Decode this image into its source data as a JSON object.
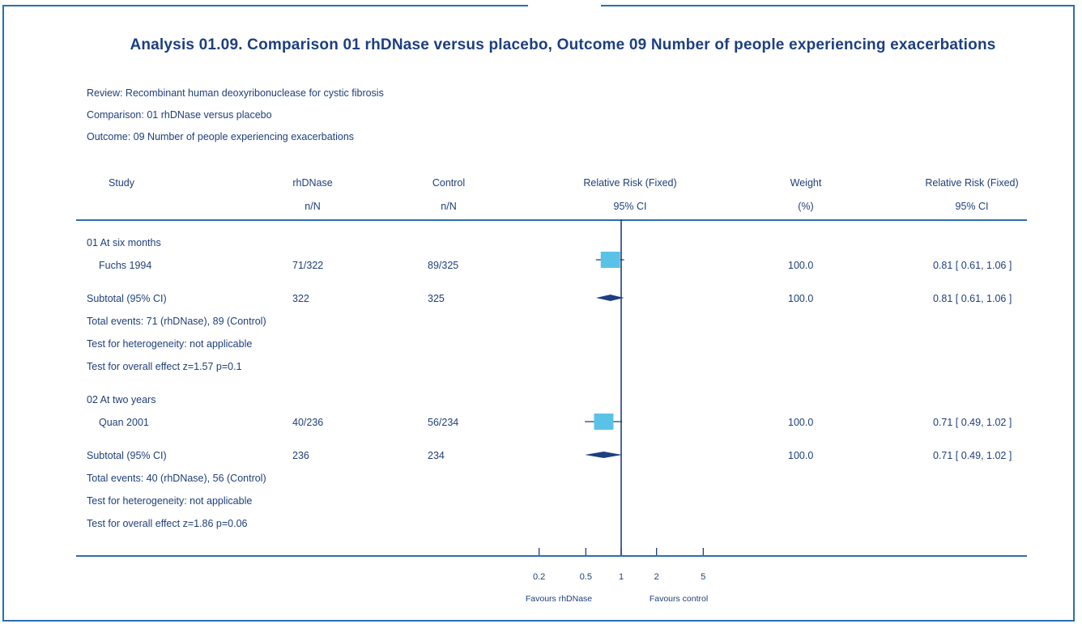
{
  "chart_data": {
    "type": "forest",
    "title": "Analysis 01.09.    Comparison 01 rhDNase versus placebo, Outcome 09 Number of people experiencing exacerbations",
    "review": "Review:   Recombinant human deoxyribonuclease for cystic fibrosis",
    "comparison": "Comparison:   01 rhDNase versus placebo",
    "outcome": "Outcome:   09 Number of people experiencing exacerbations",
    "headers": {
      "study": "Study",
      "rh1": "rhDNase",
      "rh2": "n/N",
      "ctl1": "Control",
      "ctl2": "n/N",
      "rrplot1": "Relative Risk (Fixed)",
      "rrplot2": "95% CI",
      "w1": "Weight",
      "w2": "(%)",
      "rr1": "Relative Risk (Fixed)",
      "rr2": "95% CI"
    },
    "x_axis": {
      "scale": "log",
      "ticks": [
        0.2,
        0.5,
        1,
        2,
        5
      ],
      "tick_labels": [
        "0.2",
        "0.5",
        "1",
        "2",
        "5"
      ],
      "xlim": [
        0.1,
        10
      ],
      "left_label": "Favours rhDNase",
      "right_label": "Favours control"
    },
    "groups": [
      {
        "name": "01 At six months",
        "studies": [
          {
            "study": "Fuchs 1994",
            "rhdnase": "71/322",
            "control": "89/325",
            "weight": "100.0",
            "rr_text": "0.81 [ 0.61, 1.06 ]",
            "rr": 0.81,
            "lo": 0.61,
            "hi": 1.06
          }
        ],
        "subtotal": {
          "label": "Subtotal (95% CI)",
          "rhdnase": "322",
          "control": "325",
          "weight": "100.0",
          "rr_text": "0.81 [ 0.61, 1.06 ]",
          "rr": 0.81,
          "lo": 0.61,
          "hi": 1.06
        },
        "notes": [
          "Total events: 71 (rhDNase), 89 (Control)",
          "Test for heterogeneity: not applicable",
          "Test for overall effect z=1.57    p=0.1"
        ]
      },
      {
        "name": "02 At two years",
        "studies": [
          {
            "study": "Quan 2001",
            "rhdnase": "40/236",
            "control": "56/234",
            "weight": "100.0",
            "rr_text": "0.71 [ 0.49, 1.02 ]",
            "rr": 0.71,
            "lo": 0.49,
            "hi": 1.02
          }
        ],
        "subtotal": {
          "label": "Subtotal (95% CI)",
          "rhdnase": "236",
          "control": "234",
          "weight": "100.0",
          "rr_text": "0.71 [ 0.49, 1.02 ]",
          "rr": 0.71,
          "lo": 0.49,
          "hi": 1.02
        },
        "notes": [
          "Total events: 40 (rhDNase), 56 (Control)",
          "Test for heterogeneity: not applicable",
          "Test for overall effect z=1.86    p=0.06"
        ]
      }
    ],
    "colors": {
      "text": "#1f3f7a",
      "title": "#1c3f82",
      "rule": "#2a6fb0",
      "box": "#5bc2e7",
      "diamond": "#1c3f82"
    }
  }
}
